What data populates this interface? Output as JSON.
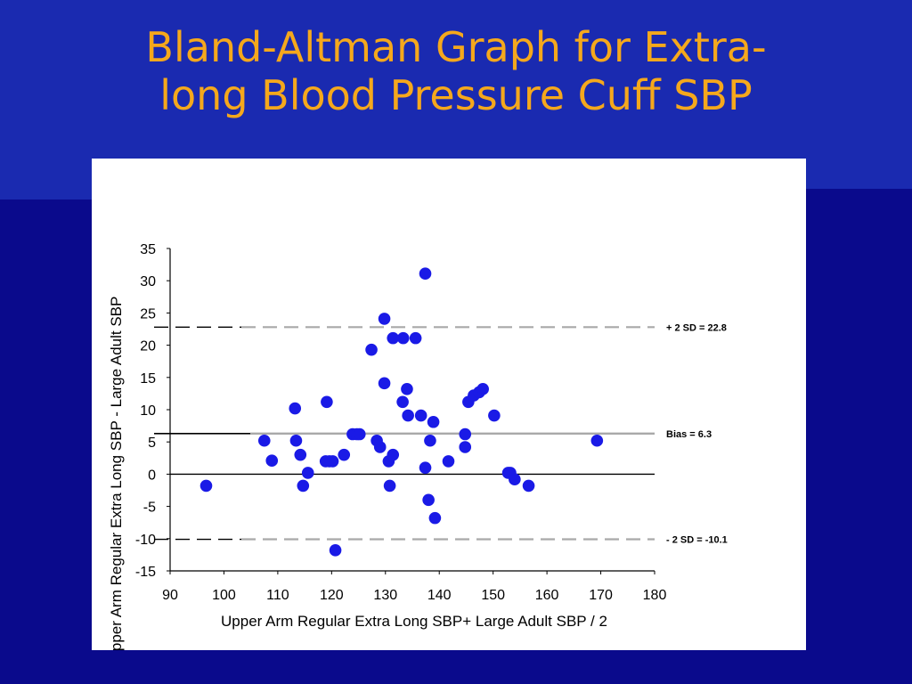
{
  "slide": {
    "title_line1": "Bland-Altman Graph for Extra-",
    "title_line2": "long Blood Pressure Cuff SBP"
  },
  "colors": {
    "background": "#0a0a8c",
    "title": "#f5a81c",
    "points": "#1a1ae6"
  },
  "chart_data": {
    "type": "scatter",
    "title": "",
    "xlabel": "Upper Arm Regular Extra Long SBP+ Large Adult SBP / 2",
    "ylabel": "Upper Arm Regular Extra Long SBP - Large Adult SBP",
    "xlim": [
      90,
      180
    ],
    "ylim": [
      -15,
      35
    ],
    "x_ticks": [
      90,
      100,
      110,
      120,
      130,
      140,
      150,
      160,
      170,
      180
    ],
    "y_ticks": [
      35,
      30,
      25,
      20,
      15,
      10,
      5,
      0,
      -5,
      -10,
      -15
    ],
    "x_tick_labels": [
      "90",
      "100",
      "110",
      "120",
      "130",
      "140",
      "150",
      "160",
      "170",
      "180"
    ],
    "y_tick_labels": [
      "35",
      "30",
      "25",
      "20",
      "15",
      "10",
      "5",
      "0",
      "-5",
      "-10",
      "-15"
    ],
    "grid": false,
    "reference_lines": [
      {
        "label": "+ 2 SD = 22.8",
        "y": 22.8,
        "style": "dashed"
      },
      {
        "label": "Bias = 6.3",
        "y": 6.3,
        "style": "solid"
      },
      {
        "label": "- 2 SD = -10.1",
        "y": -10.1,
        "style": "dashed"
      },
      {
        "label": "",
        "y": 0,
        "style": "solid"
      }
    ],
    "points": [
      {
        "x": 96.7,
        "y": -1.8
      },
      {
        "x": 107.5,
        "y": 5.2
      },
      {
        "x": 108.9,
        "y": 2.1
      },
      {
        "x": 113.2,
        "y": 10.2
      },
      {
        "x": 113.4,
        "y": 5.2
      },
      {
        "x": 114.2,
        "y": 3.0
      },
      {
        "x": 114.7,
        "y": -1.8
      },
      {
        "x": 115.6,
        "y": 0.2
      },
      {
        "x": 118.9,
        "y": 2.0
      },
      {
        "x": 119.1,
        "y": 11.2
      },
      {
        "x": 119.6,
        "y": 2.0
      },
      {
        "x": 120.2,
        "y": 2.0
      },
      {
        "x": 120.7,
        "y": -11.8
      },
      {
        "x": 122.3,
        "y": 3.0
      },
      {
        "x": 123.9,
        "y": 6.2
      },
      {
        "x": 124.7,
        "y": 6.2
      },
      {
        "x": 125.2,
        "y": 6.2
      },
      {
        "x": 127.4,
        "y": 19.3
      },
      {
        "x": 128.4,
        "y": 5.2
      },
      {
        "x": 129.0,
        "y": 4.2
      },
      {
        "x": 129.8,
        "y": 14.1
      },
      {
        "x": 129.8,
        "y": 24.1
      },
      {
        "x": 130.6,
        "y": 2.0
      },
      {
        "x": 130.8,
        "y": -1.8
      },
      {
        "x": 131.4,
        "y": 3.0
      },
      {
        "x": 131.4,
        "y": 21.1
      },
      {
        "x": 133.2,
        "y": 11.2
      },
      {
        "x": 133.3,
        "y": 21.1
      },
      {
        "x": 134.0,
        "y": 13.2
      },
      {
        "x": 134.2,
        "y": 9.1
      },
      {
        "x": 135.6,
        "y": 21.1
      },
      {
        "x": 136.6,
        "y": 9.1
      },
      {
        "x": 137.4,
        "y": 31.1
      },
      {
        "x": 137.4,
        "y": 1.0
      },
      {
        "x": 138.0,
        "y": -4.0
      },
      {
        "x": 138.3,
        "y": 5.2
      },
      {
        "x": 138.9,
        "y": 8.1
      },
      {
        "x": 139.2,
        "y": -6.8
      },
      {
        "x": 141.7,
        "y": 2.0
      },
      {
        "x": 144.8,
        "y": 6.2
      },
      {
        "x": 144.8,
        "y": 4.2
      },
      {
        "x": 145.4,
        "y": 11.2
      },
      {
        "x": 146.4,
        "y": 12.2
      },
      {
        "x": 147.4,
        "y": 12.7
      },
      {
        "x": 148.1,
        "y": 13.2
      },
      {
        "x": 150.2,
        "y": 9.1
      },
      {
        "x": 152.8,
        "y": 0.2
      },
      {
        "x": 153.2,
        "y": 0.2
      },
      {
        "x": 154.0,
        "y": -0.8
      },
      {
        "x": 156.6,
        "y": -1.8
      },
      {
        "x": 169.3,
        "y": 5.2
      }
    ]
  }
}
